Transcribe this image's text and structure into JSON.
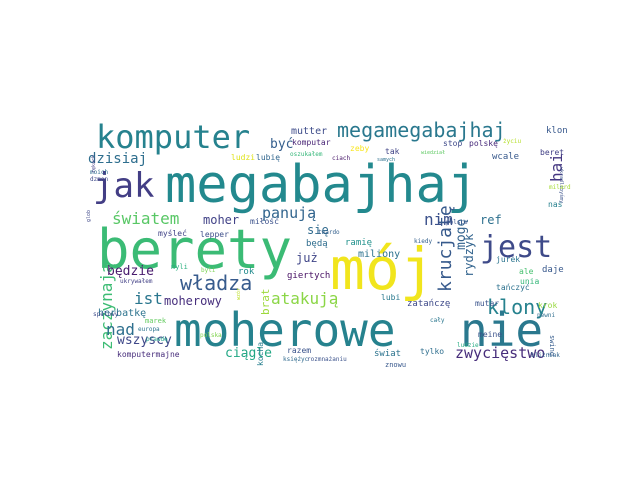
{
  "words": [
    {
      "text": "megabajhaj",
      "color": "#23898e"
    },
    {
      "text": "berety",
      "color": "#3bbb75"
    },
    {
      "text": "moherowe",
      "color": "#26828e"
    },
    {
      "text": "nie",
      "color": "#2a788e"
    },
    {
      "text": "mój",
      "color": "#f1e51d"
    },
    {
      "text": "komputer",
      "color": "#26828e"
    },
    {
      "text": "megamegabajhaj",
      "color": "#2a788e"
    },
    {
      "text": "jak",
      "color": "#433e85"
    },
    {
      "text": "jest",
      "color": "#3e4a89"
    },
    {
      "text": "władza",
      "color": "#375b8d"
    },
    {
      "text": "klony",
      "color": "#26828e"
    },
    {
      "text": "zwycięstwo",
      "color": "#472d7b"
    },
    {
      "text": "atakują",
      "color": "#8bd646"
    },
    {
      "text": "panują",
      "color": "#32658e"
    },
    {
      "text": "światem",
      "color": "#58c765"
    },
    {
      "text": "zaczynają",
      "color": "#3dbc74"
    },
    {
      "text": "krucjatę",
      "color": "#375a8c"
    },
    {
      "text": "nim",
      "color": "#3b518b"
    },
    {
      "text": "hai",
      "color": "#453781"
    },
    {
      "text": "nad",
      "color": "#2e6f8e"
    },
    {
      "text": "ist",
      "color": "#2a768e"
    },
    {
      "text": "dzisiaj",
      "color": "#2e6e8e"
    },
    {
      "text": "moherowy",
      "color": "#472f7d"
    },
    {
      "text": "być",
      "color": "#355f8d"
    },
    {
      "text": "się",
      "color": "#306a8e"
    },
    {
      "text": "będzie",
      "color": "#481b6d"
    },
    {
      "text": "ciągle",
      "color": "#22a785"
    },
    {
      "text": "wszyscy",
      "color": "#3f4889"
    },
    {
      "text": "moher",
      "color": "#414287"
    },
    {
      "text": "ref",
      "color": "#2d708e"
    },
    {
      "text": "mogę",
      "color": "#33628d"
    },
    {
      "text": "już",
      "color": "#404688"
    },
    {
      "text": "herbatkę",
      "color": "#2c738e"
    },
    {
      "text": "rydzyk",
      "color": "#32648e"
    },
    {
      "text": "brat",
      "color": "#9dd93b"
    },
    {
      "text": "miliony",
      "color": "#2c728e"
    },
    {
      "text": "mutter",
      "color": "#3e4c8a"
    },
    {
      "text": "klon",
      "color": "#38588c"
    },
    {
      "text": "ludzi",
      "color": "#dfe318"
    },
    {
      "text": "lubię",
      "color": "#31668e"
    },
    {
      "text": "wcale",
      "color": "#38598c"
    },
    {
      "text": "myśleć",
      "color": "#404387"
    },
    {
      "text": "lepper",
      "color": "#3d4e8a"
    },
    {
      "text": "miłość",
      "color": "#3b518b"
    },
    {
      "text": "komputar",
      "color": "#482475"
    },
    {
      "text": "polskę",
      "color": "#472a7a"
    },
    {
      "text": "stop",
      "color": "#3e4989"
    },
    {
      "text": "beret",
      "color": "#424086"
    },
    {
      "text": "ramię",
      "color": "#21918c"
    },
    {
      "text": "będą",
      "color": "#2e6d8e"
    },
    {
      "text": "giertych",
      "color": "#471164"
    },
    {
      "text": "twardo",
      "color": "#34618d"
    },
    {
      "text": "mutar",
      "color": "#3a548c"
    },
    {
      "text": "unia",
      "color": "#35b779"
    },
    {
      "text": "daje",
      "color": "#38588c"
    },
    {
      "text": "ale",
      "color": "#46c06f"
    },
    {
      "text": "jurek",
      "color": "#2b748e"
    },
    {
      "text": "nas",
      "color": "#27808e"
    },
    {
      "text": "kiedy",
      "color": "#34608d"
    },
    {
      "text": "rok",
      "color": "#228b8d"
    },
    {
      "text": "lubi",
      "color": "#29798e"
    },
    {
      "text": "zatańczę",
      "color": "#3e4a89"
    },
    {
      "text": "tańczyć",
      "color": "#2c718e"
    },
    {
      "text": "meine",
      "color": "#3b528b"
    },
    {
      "text": "krok",
      "color": "#98d83e"
    },
    {
      "text": "razem",
      "color": "#3a538b"
    },
    {
      "text": "świat",
      "color": "#2c738e"
    },
    {
      "text": "tylko",
      "color": "#2e6e8e"
    },
    {
      "text": "komputermajne",
      "color": "#472d7b"
    },
    {
      "text": "znowu",
      "color": "#38588c"
    },
    {
      "text": "kocha",
      "color": "#277f8e"
    },
    {
      "text": "marek",
      "color": "#63cb5f"
    },
    {
      "text": "myli",
      "color": "#2ab07f"
    },
    {
      "text": "byli",
      "color": "#7ad151"
    },
    {
      "text": "ukrywałem",
      "color": "#424086"
    },
    {
      "text": "swing",
      "color": "#365c8d"
    },
    {
      "text": "zeby",
      "color": "#f8e621"
    },
    {
      "text": "tak",
      "color": "#414487"
    },
    {
      "text": "oszukałem",
      "color": "#35b779"
    },
    {
      "text": "ciach",
      "color": "#48186a"
    },
    {
      "text": "samych",
      "color": "#2d708e"
    },
    {
      "text": "życiu",
      "color": "#b5de2b"
    },
    {
      "text": "moich",
      "color": "#2e6e8e"
    },
    {
      "text": "rękach",
      "color": "#433e85"
    },
    {
      "text": "dzmon",
      "color": "#3e4a89"
    },
    {
      "text": "spelowy",
      "color": "#3e4c8a"
    },
    {
      "text": "prawdę",
      "color": "#1fa088"
    },
    {
      "text": "europa",
      "color": "#2c738e"
    },
    {
      "text": "polska",
      "color": "#7fd34e"
    },
    {
      "text": "księżyc",
      "color": "#306a8e"
    },
    {
      "text": "rozmnażaniu",
      "color": "#3b528b"
    },
    {
      "text": "ludzie",
      "color": "#25ac82"
    },
    {
      "text": "polsce",
      "color": "#3a548c"
    },
    {
      "text": "cały",
      "color": "#2a768e"
    },
    {
      "text": "ukradlibyśmy",
      "color": "#3b528b"
    },
    {
      "text": "pewni",
      "color": "#2e6e8e"
    },
    {
      "text": "bliżniak",
      "color": "#32648e"
    },
    {
      "text": "milard",
      "color": "#a5db36"
    },
    {
      "text": "wiedział",
      "color": "#5ec962"
    },
    {
      "text": "glob",
      "color": "#3f4889"
    },
    {
      "text": "wzór",
      "color": "#bddf26"
    }
  ]
}
